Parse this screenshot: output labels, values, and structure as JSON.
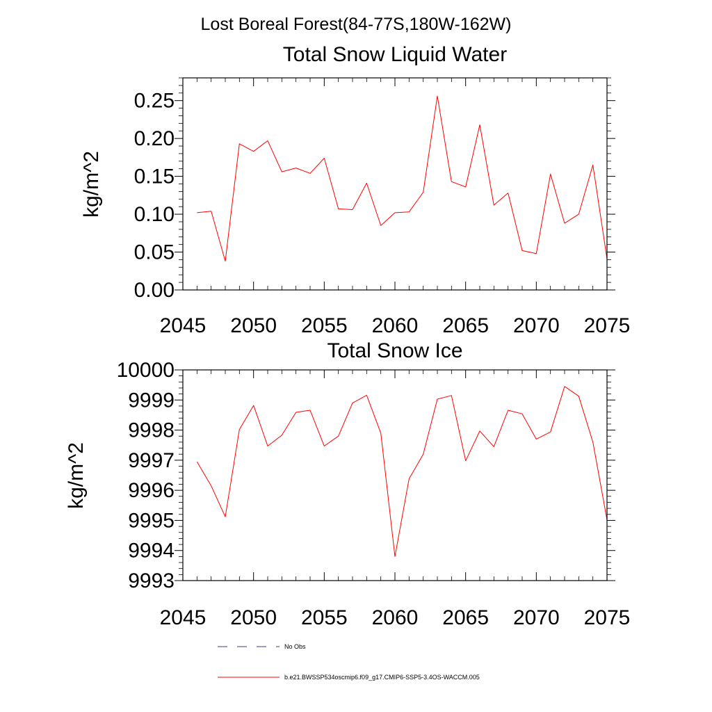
{
  "figure_title": "Lost Boreal Forest(84-77S,180W-162W)",
  "legend": {
    "items": [
      {
        "label": "No Obs",
        "color": "#3b3b8a",
        "style": "dashed"
      },
      {
        "label": "b.e21.BWSSP534oscmip6.f09_g17.CMIP6-SSP5-3.4OS-WACCM.005",
        "color": "#ff0000",
        "style": "solid"
      }
    ]
  },
  "chart_data": [
    {
      "type": "line",
      "title": "Total Snow Liquid Water",
      "xlabel": "",
      "ylabel": "kg/m^2",
      "xlim": [
        2045,
        2075
      ],
      "ylim": [
        0,
        0.28
      ],
      "xticks": [
        2045,
        2050,
        2055,
        2060,
        2065,
        2070,
        2075
      ],
      "yticks": [
        0.0,
        0.05,
        0.1,
        0.15,
        0.2,
        0.25
      ],
      "ytick_labels": [
        "0.00",
        "0.05",
        "0.10",
        "0.15",
        "0.20",
        "0.25"
      ],
      "series": [
        {
          "name": "b.e21.BWSSP534oscmip6.f09_g17.CMIP6-SSP5-3.4OS-WACCM.005",
          "color": "#ff0000",
          "x": [
            2046,
            2047,
            2048,
            2049,
            2050,
            2051,
            2052,
            2053,
            2054,
            2055,
            2056,
            2057,
            2058,
            2059,
            2060,
            2061,
            2062,
            2063,
            2064,
            2065,
            2066,
            2067,
            2068,
            2069,
            2070,
            2071,
            2072,
            2073,
            2074,
            2075
          ],
          "values": [
            0.102,
            0.104,
            0.038,
            0.193,
            0.183,
            0.197,
            0.156,
            0.161,
            0.154,
            0.174,
            0.107,
            0.106,
            0.141,
            0.085,
            0.102,
            0.103,
            0.129,
            0.256,
            0.143,
            0.136,
            0.218,
            0.112,
            0.128,
            0.052,
            0.048,
            0.153,
            0.088,
            0.1,
            0.165,
            0.041
          ]
        }
      ]
    },
    {
      "type": "line",
      "title": "Total Snow Ice",
      "xlabel": "",
      "ylabel": "kg/m^2",
      "xlim": [
        2045,
        2075
      ],
      "ylim": [
        9993,
        10000
      ],
      "xticks": [
        2045,
        2050,
        2055,
        2060,
        2065,
        2070,
        2075
      ],
      "yticks": [
        9993,
        9994,
        9995,
        9996,
        9997,
        9998,
        9999,
        10000
      ],
      "ytick_labels": [
        "9993",
        "9994",
        "9995",
        "9996",
        "9997",
        "9998",
        "9999",
        "10000"
      ],
      "series": [
        {
          "name": "b.e21.BWSSP534oscmip6.f09_g17.CMIP6-SSP5-3.4OS-WACCM.005",
          "color": "#ff0000",
          "x": [
            2046,
            2047,
            2048,
            2049,
            2050,
            2051,
            2052,
            2053,
            2054,
            2055,
            2056,
            2057,
            2058,
            2059,
            2060,
            2061,
            2062,
            2063,
            2064,
            2065,
            2066,
            2067,
            2068,
            2069,
            2070,
            2071,
            2072,
            2073,
            2074,
            2075
          ],
          "values": [
            9996.95,
            9996.15,
            9995.12,
            9998.02,
            9998.82,
            9997.47,
            9997.83,
            9998.59,
            9998.66,
            9997.47,
            9997.8,
            9998.9,
            9999.16,
            9997.9,
            9993.8,
            9996.38,
            9997.2,
            9999.03,
            9999.15,
            9996.98,
            9997.97,
            9997.45,
            9998.66,
            9998.54,
            9997.7,
            9997.94,
            9999.45,
            9999.13,
            9997.6,
            9995.02
          ]
        }
      ]
    }
  ]
}
